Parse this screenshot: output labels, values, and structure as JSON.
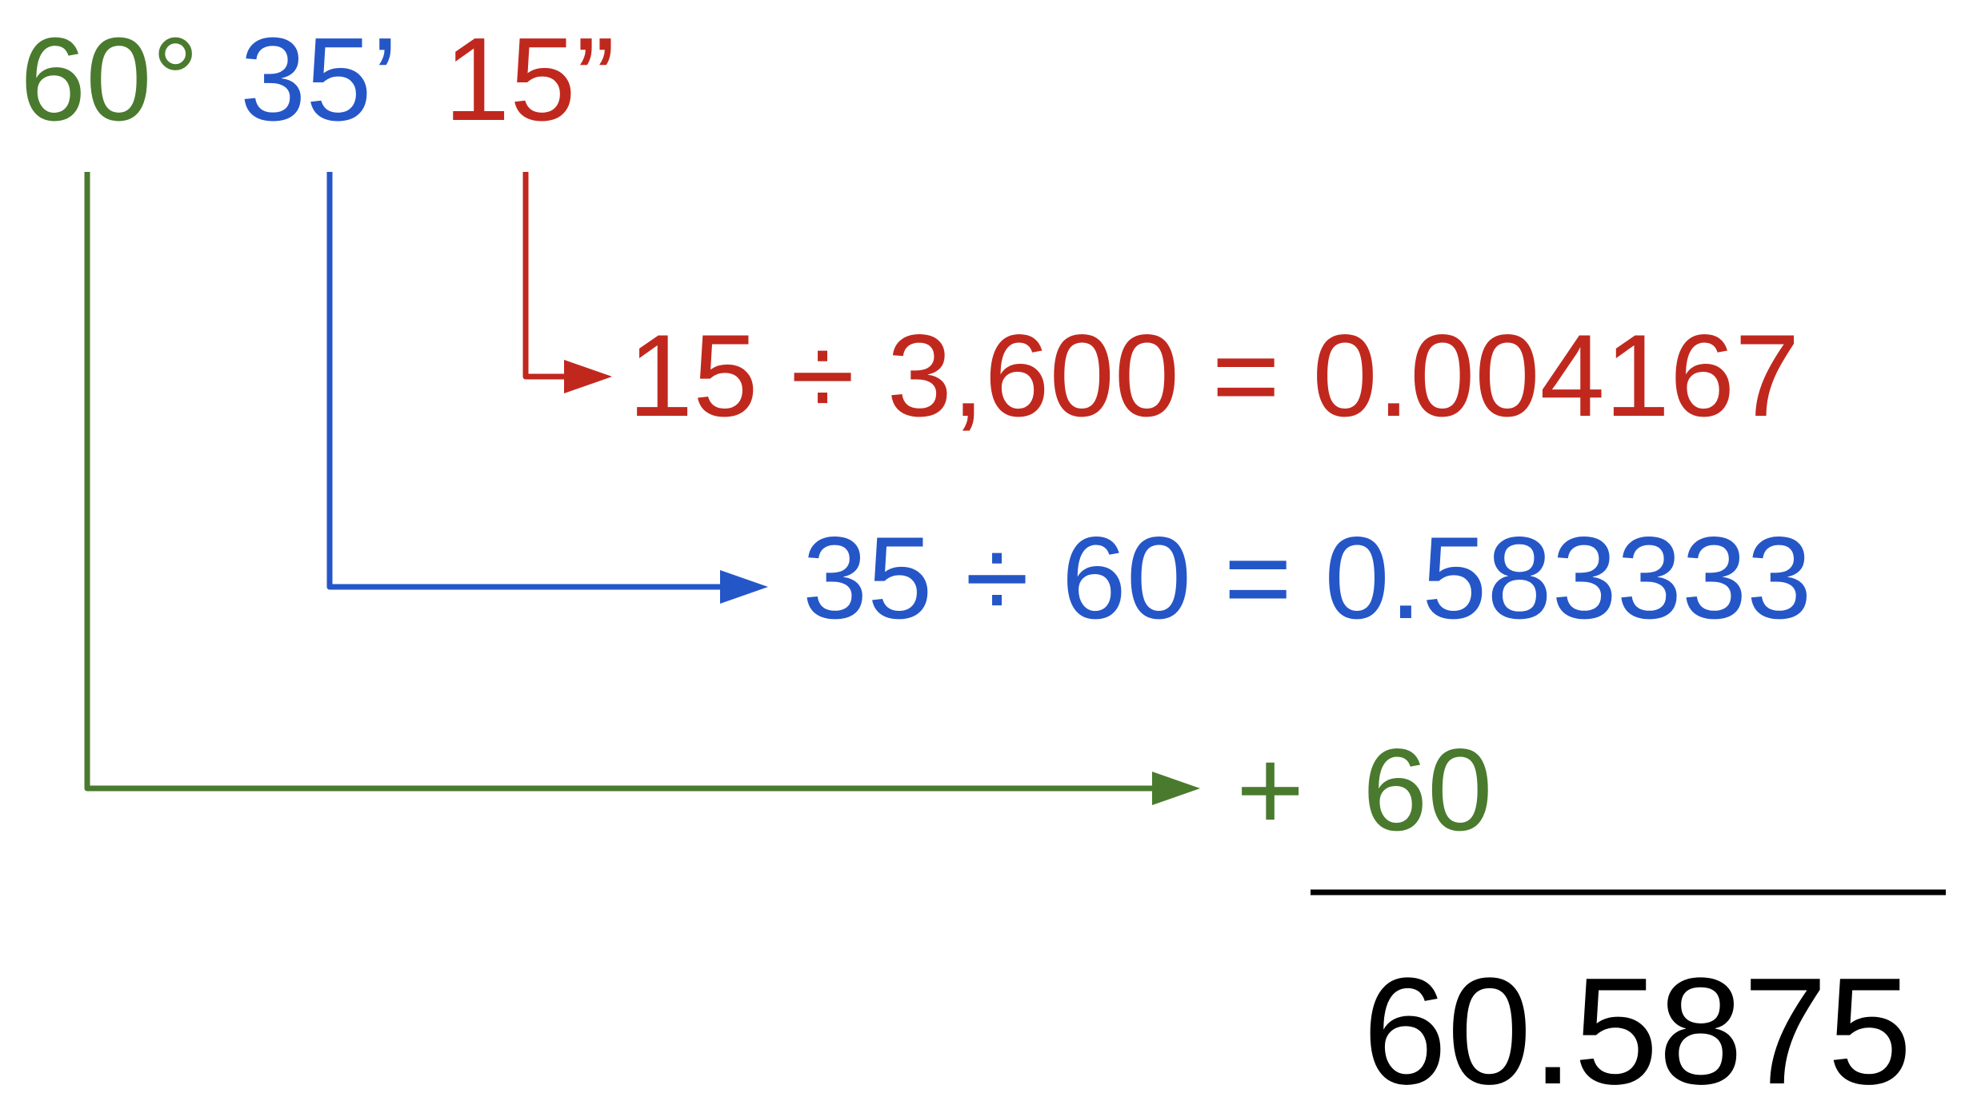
{
  "colors": {
    "degrees": "#4a7a2e",
    "minutes": "#2456c8",
    "seconds": "#c0281e",
    "result": "#000000"
  },
  "dms": {
    "degrees": "60°",
    "minutes": "35’",
    "seconds": "15”"
  },
  "seconds_step": {
    "expression": "15 ÷ 3,600 = 0.004167"
  },
  "minutes_step": {
    "expression": "35 ÷ 60 = 0.583333"
  },
  "degrees_step": {
    "operator": "+",
    "value": "60"
  },
  "result": {
    "value": "60.5875"
  }
}
